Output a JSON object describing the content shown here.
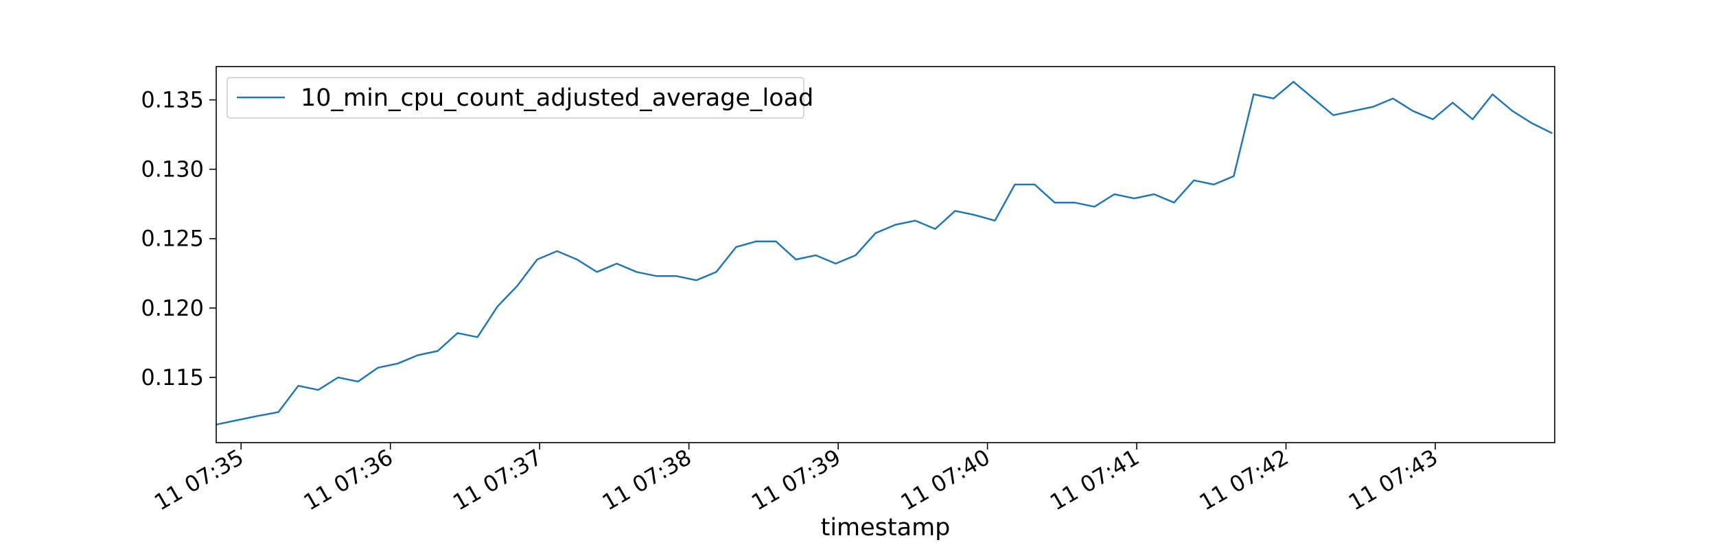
{
  "chart_data": {
    "type": "line",
    "title": "",
    "xlabel": "timestamp",
    "ylabel": "",
    "x_tick_labels": [
      "11 07:35",
      "11 07:36",
      "11 07:37",
      "11 07:38",
      "11 07:39",
      "11 07:40",
      "11 07:41",
      "11 07:42",
      "11 07:43"
    ],
    "y_tick_labels": [
      "0.115",
      "0.120",
      "0.125",
      "0.130",
      "0.135"
    ],
    "y_ticks": [
      0.115,
      0.12,
      0.125,
      0.13,
      0.135
    ],
    "xlim": [
      "07:34:50",
      "07:43:48"
    ],
    "ylim": [
      0.1103,
      0.1374
    ],
    "grid": false,
    "legend_position": "upper-left",
    "series": [
      {
        "name": "10_min_cpu_count_adjusted_average_load",
        "color": "#1f77b4",
        "x": [
          "07:34:50",
          "07:34:58",
          "07:35:06",
          "07:35:15",
          "07:35:23",
          "07:35:31",
          "07:35:39",
          "07:35:47",
          "07:35:55",
          "07:36:03",
          "07:36:11",
          "07:36:19",
          "07:36:27",
          "07:36:35",
          "07:36:43",
          "07:36:51",
          "07:36:59",
          "07:37:07",
          "07:37:15",
          "07:37:23",
          "07:37:31",
          "07:37:39",
          "07:37:47",
          "07:37:55",
          "07:38:03",
          "07:38:11",
          "07:38:19",
          "07:38:27",
          "07:38:35",
          "07:38:43",
          "07:38:51",
          "07:38:59",
          "07:39:07",
          "07:39:15",
          "07:39:23",
          "07:39:31",
          "07:39:39",
          "07:39:47",
          "07:39:55",
          "07:40:03",
          "07:40:11",
          "07:40:19",
          "07:40:27",
          "07:40:35",
          "07:40:43",
          "07:40:51",
          "07:40:59",
          "07:41:07",
          "07:41:15",
          "07:41:23",
          "07:41:31",
          "07:41:39",
          "07:41:47",
          "07:41:55",
          "07:42:03",
          "07:42:11",
          "07:42:19",
          "07:42:27",
          "07:42:35",
          "07:42:43",
          "07:42:51",
          "07:42:59",
          "07:43:07",
          "07:43:15",
          "07:43:23",
          "07:43:31",
          "07:43:39",
          "07:43:47"
        ],
        "values": [
          0.1116,
          0.1119,
          0.1122,
          0.1125,
          0.1144,
          0.1141,
          0.115,
          0.1147,
          0.1157,
          0.116,
          0.1166,
          0.1169,
          0.1182,
          0.1179,
          0.1201,
          0.1216,
          0.1235,
          0.1241,
          0.1235,
          0.1226,
          0.1232,
          0.1226,
          0.1223,
          0.1223,
          0.122,
          0.1226,
          0.1244,
          0.1248,
          0.1248,
          0.1235,
          0.1238,
          0.1232,
          0.1238,
          0.1254,
          0.126,
          0.1263,
          0.1257,
          0.127,
          0.1267,
          0.1263,
          0.1289,
          0.1289,
          0.1276,
          0.1276,
          0.1273,
          0.1282,
          0.1279,
          0.1282,
          0.1276,
          0.1292,
          0.1289,
          0.1295,
          0.1354,
          0.1351,
          0.1363,
          0.1351,
          0.1339,
          0.1342,
          0.1345,
          0.1351,
          0.1342,
          0.1336,
          0.1348,
          0.1336,
          0.1354,
          0.1342,
          0.1333,
          0.1326
        ]
      }
    ]
  }
}
